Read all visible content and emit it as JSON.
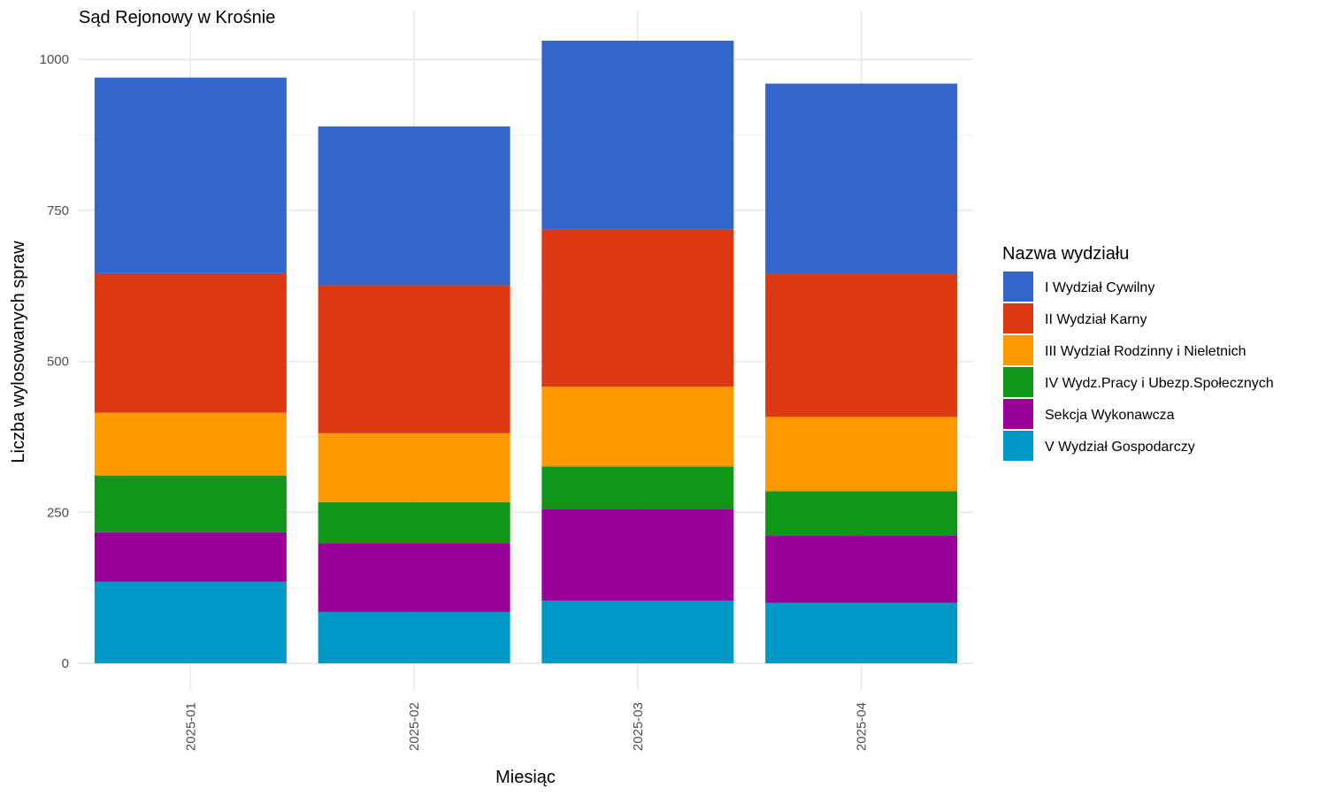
{
  "chart_data": {
    "type": "bar",
    "stacked": true,
    "title": "Sąd Rejonowy w Krośnie",
    "xlabel": "Miesiąc",
    "ylabel": "Liczba wylosowanych spraw",
    "ylim": [
      0,
      1050
    ],
    "yticks": [
      0,
      250,
      500,
      750,
      1000
    ],
    "grid": true,
    "legend_title": "Nazwa wydziału",
    "legend_position": "right",
    "categories": [
      "2025-01",
      "2025-02",
      "2025-03",
      "2025-04"
    ],
    "series": [
      {
        "name": "V Wydział Gospodarczy",
        "color": "#0099C6",
        "values": [
          135,
          85,
          104,
          100
        ]
      },
      {
        "name": "Sekcja Wykonawcza",
        "color": "#990099",
        "values": [
          82,
          114,
          152,
          112
        ]
      },
      {
        "name": "IV Wydz.Pracy i Ubezp.Społecznych",
        "color": "#109618",
        "values": [
          94,
          68,
          70,
          73
        ]
      },
      {
        "name": "III Wydział Rodzinny i Nieletnich",
        "color": "#FF9900",
        "values": [
          104,
          114,
          132,
          123
        ]
      },
      {
        "name": "II Wydział Karny",
        "color": "#DC3912",
        "values": [
          231,
          245,
          260,
          237
        ]
      },
      {
        "name": "I Wydział Cywilny",
        "color": "#3366CC",
        "values": [
          324,
          263,
          313,
          315
        ]
      }
    ],
    "legend_order": [
      "I Wydział Cywilny",
      "II Wydział Karny",
      "III Wydział Rodzinny i Nieletnich",
      "IV Wydz.Pracy i Ubezp.Społecznych",
      "Sekcja Wykonawcza",
      "V Wydział Gospodarczy"
    ]
  }
}
